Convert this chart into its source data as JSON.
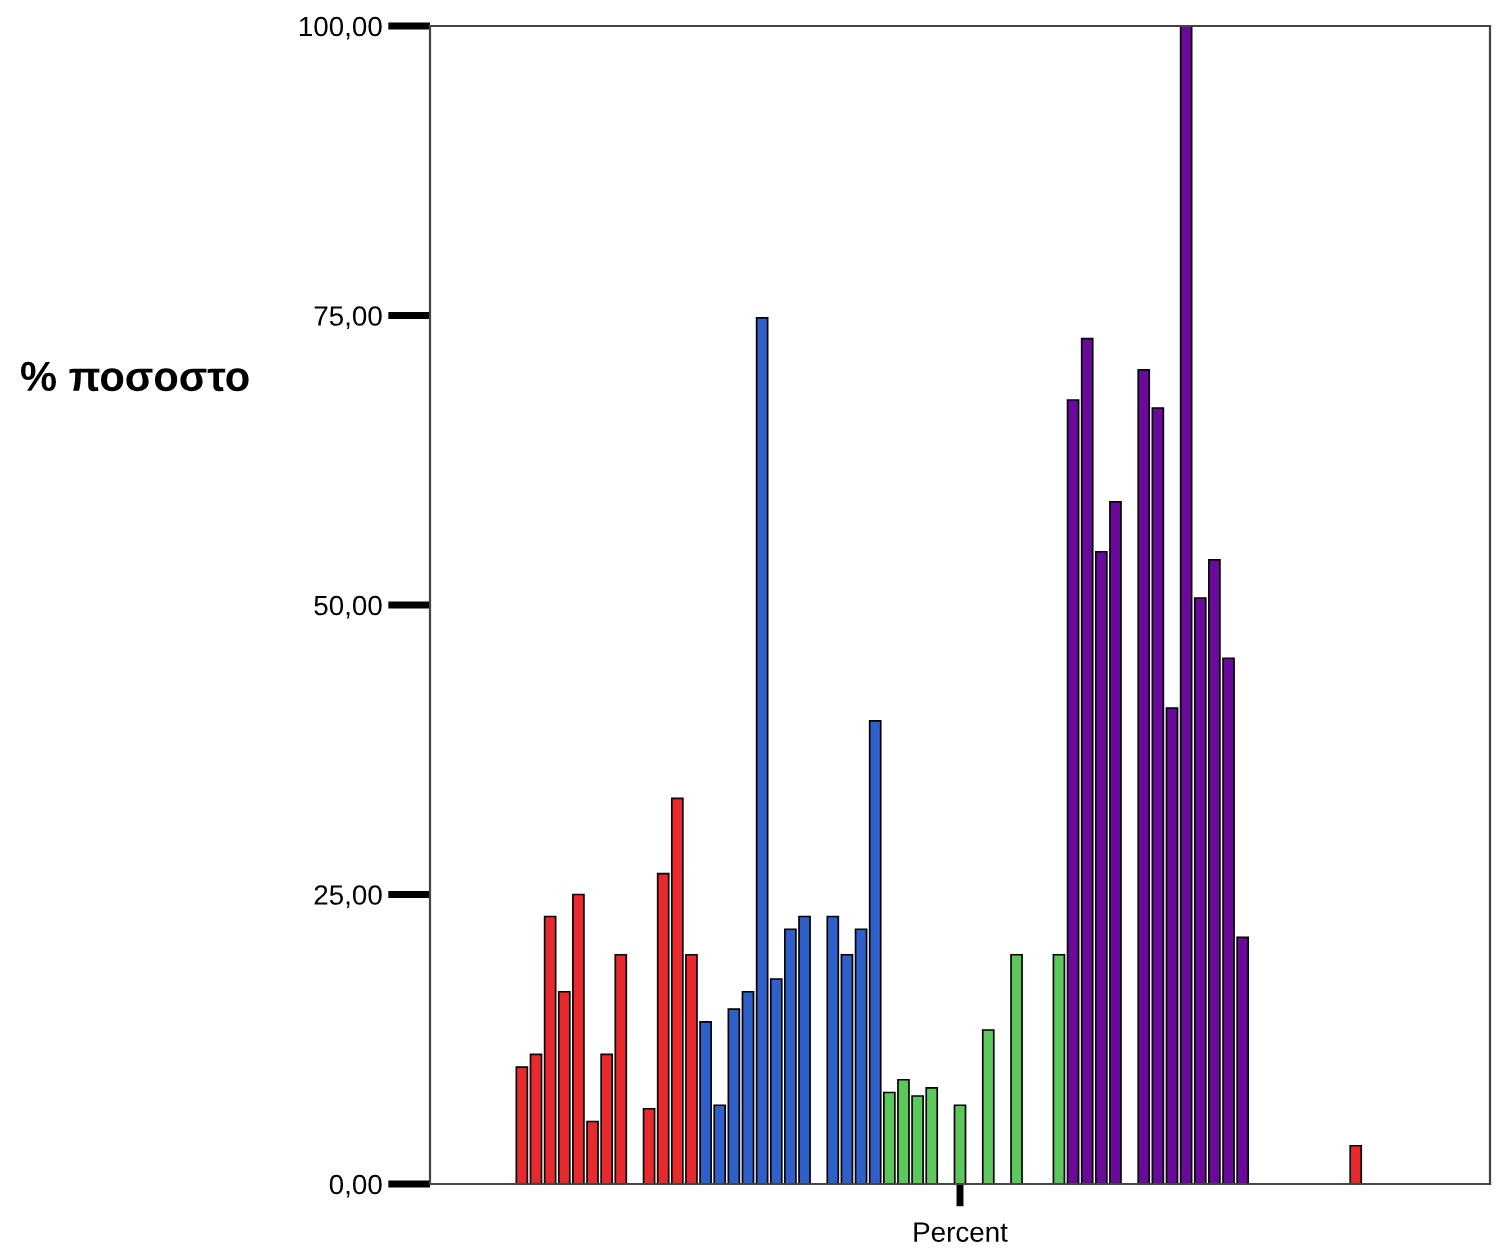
{
  "chart_data": {
    "type": "bar",
    "ylabel": "% ποσοστο",
    "xlabel": "Percent",
    "categories": [
      null,
      null,
      null,
      null,
      null,
      null,
      null,
      null,
      null,
      null,
      null,
      null,
      null,
      null,
      null,
      null,
      null,
      null,
      null,
      null,
      null,
      null,
      null,
      null,
      null,
      null,
      null,
      null,
      null,
      null,
      null,
      null,
      null,
      null,
      null,
      null,
      null,
      null,
      null,
      null,
      null,
      null,
      null,
      null,
      null,
      null,
      null,
      null,
      null,
      null,
      null,
      null,
      null,
      null,
      null,
      null,
      null,
      null,
      null,
      null,
      null,
      null,
      null,
      null,
      null,
      null,
      null,
      null,
      null,
      null,
      null,
      null,
      null,
      null,
      null
    ],
    "values": [
      null,
      null,
      null,
      null,
      null,
      null,
      10.1,
      11.2,
      23.1,
      16.6,
      25.0,
      5.4,
      11.2,
      19.8,
      null,
      6.5,
      26.8,
      33.3,
      19.8,
      14.0,
      6.8,
      15.1,
      16.6,
      74.8,
      17.7,
      22.0,
      23.1,
      null,
      23.1,
      19.8,
      22.0,
      40.0,
      7.9,
      9.0,
      7.6,
      8.3,
      null,
      6.8,
      null,
      13.3,
      null,
      19.8,
      null,
      null,
      19.8,
      67.7,
      73.0,
      54.6,
      58.9,
      null,
      70.3,
      67.0,
      41.1,
      100.0,
      50.6,
      53.9,
      45.4,
      21.3,
      null,
      null,
      null,
      null,
      null,
      null,
      null,
      3.3,
      null,
      null,
      null,
      null,
      null,
      null,
      null,
      null,
      null
    ],
    "colors": [
      "#e82a2e",
      "#e82a2e",
      "#e82a2e",
      "#e82a2e",
      "#e82a2e",
      "#e82a2e",
      "#e82a2e",
      "#e82a2e",
      "#e82a2e",
      "#e82a2e",
      "#e82a2e",
      "#e82a2e",
      "#e82a2e",
      "#e82a2e",
      "#e82a2e",
      "#e82a2e",
      "#e82a2e",
      "#e82a2e",
      "#e82a2e",
      "#2f5fc8",
      "#2f5fc8",
      "#2f5fc8",
      "#2f5fc8",
      "#2f5fc8",
      "#2f5fc8",
      "#2f5fc8",
      "#2f5fc8",
      "#2f5fc8",
      "#2f5fc8",
      "#2f5fc8",
      "#2f5fc8",
      "#2f5fc8",
      "#5cc85c",
      "#5cc85c",
      "#5cc85c",
      "#5cc85c",
      "#5cc85c",
      "#5cc85c",
      "#5cc85c",
      "#5cc85c",
      "#5cc85c",
      "#5cc85c",
      "#5cc85c",
      "#5cc85c",
      "#5cc85c",
      "#6a0a9a",
      "#6a0a9a",
      "#6a0a9a",
      "#6a0a9a",
      "#6a0a9a",
      "#6a0a9a",
      "#6a0a9a",
      "#6a0a9a",
      "#6a0a9a",
      "#6a0a9a",
      "#6a0a9a",
      "#6a0a9a",
      "#6a0a9a",
      "#e82a2e",
      "#e82a2e",
      "#e82a2e",
      "#e82a2e",
      "#e82a2e",
      "#e82a2e",
      "#e82a2e",
      "#e82a2e",
      "#e82a2e",
      "#e82a2e",
      "#e82a2e",
      "#e82a2e",
      "#e82a2e",
      "#e82a2e",
      "#e82a2e",
      "#e82a2e",
      "#e82a2e"
    ],
    "ylim": [
      0,
      100
    ],
    "yticks": [
      {
        "value": 0,
        "label": "0,00"
      },
      {
        "value": 25,
        "label": "25,00"
      },
      {
        "value": 50,
        "label": "50,00"
      },
      {
        "value": 75,
        "label": "75,00"
      },
      {
        "value": 100,
        "label": "100,00"
      }
    ],
    "grid": false,
    "legend": false
  }
}
